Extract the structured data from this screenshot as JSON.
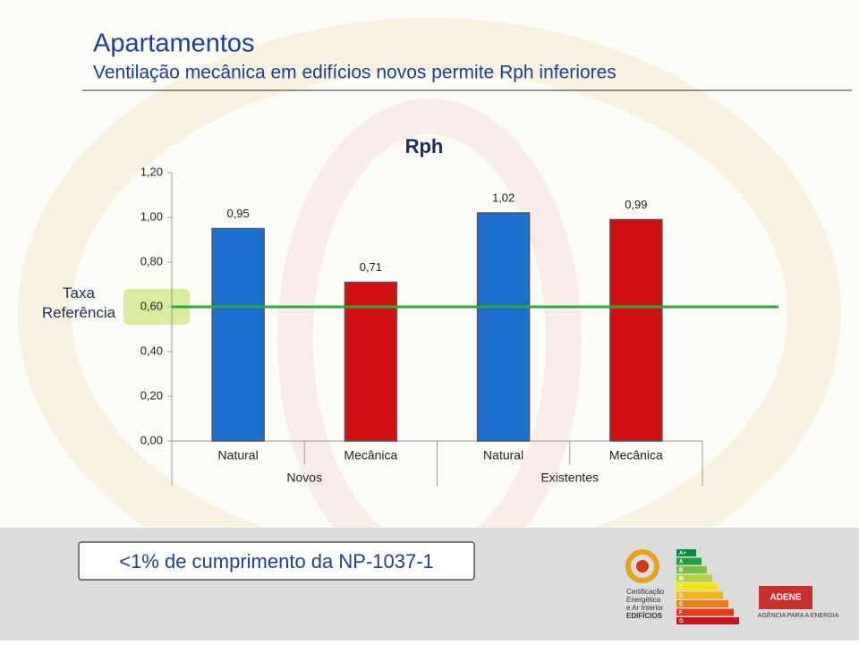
{
  "slide": {
    "title": "Apartamentos",
    "subtitle": "Ventilação mecânica em edifícios novos permite Rph inferiores"
  },
  "chart_data": {
    "type": "bar",
    "title": "Rph",
    "categories": [
      "Natural",
      "Mecânica",
      "Natural",
      "Mecânica"
    ],
    "groups": [
      "Novos",
      "Existentes"
    ],
    "values": [
      0.95,
      0.71,
      1.02,
      0.99
    ],
    "value_labels": [
      "0,95",
      "0,71",
      "1,02",
      "0,99"
    ],
    "colors": [
      "#1a6fd1",
      "#d01010",
      "#1a6fd1",
      "#d01010"
    ],
    "ylim": [
      0,
      1.2
    ],
    "yticks": [
      {
        "value": 0,
        "label": "0,00"
      },
      {
        "value": 0.2,
        "label": "0,20"
      },
      {
        "value": 0.4,
        "label": "0,40"
      },
      {
        "value": 0.6,
        "label": "0,60"
      },
      {
        "value": 0.8,
        "label": "0,80"
      },
      {
        "value": 1.0,
        "label": "1,00"
      },
      {
        "value": 1.2,
        "label": "1,20"
      }
    ],
    "reference": {
      "label": "Taxa Referência",
      "value": 0.6,
      "color": "#2eaa3a"
    }
  },
  "footer": {
    "callout": "<1% de cumprimento da NP-1037-1",
    "certification": [
      "Certificação",
      "Energética",
      "e Ar Interior",
      "EDIFÍCIOS"
    ],
    "energy_classes": [
      "A+",
      "A",
      "B",
      "B-",
      "C",
      "D",
      "E",
      "F",
      "G"
    ],
    "agency": "ADENE",
    "agency_tagline": "AGÊNCIA PARA A ENERGIA"
  }
}
